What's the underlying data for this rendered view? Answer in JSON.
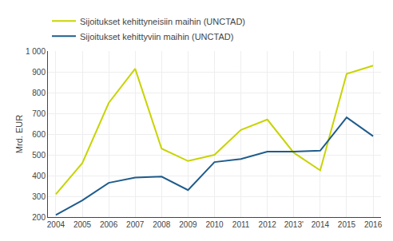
{
  "chart_data": {
    "type": "line",
    "categories": [
      "2004",
      "2005",
      "2006",
      "2007",
      "2008",
      "2009",
      "2010",
      "2011",
      "2012",
      "2013'",
      "2014",
      "2015",
      "2016"
    ],
    "series": [
      {
        "name": "Sijoitukset kehittyneisiin maihin (UNCTAD)",
        "color": "#c8d400",
        "values": [
          310,
          460,
          750,
          915,
          530,
          470,
          500,
          620,
          670,
          510,
          425,
          890,
          930
        ]
      },
      {
        "name": "Sijoitukset kehittyviin maihin (UNCTAD)",
        "color": "#1f5c8b",
        "values": [
          210,
          280,
          365,
          390,
          395,
          330,
          465,
          480,
          515,
          515,
          520,
          680,
          590
        ]
      }
    ],
    "ylabel": "Mrd. EUR",
    "ylim": [
      200,
      1000
    ],
    "yticks": [
      200,
      300,
      400,
      500,
      600,
      700,
      800,
      900,
      {
        "value": 1000,
        "label": "1 000"
      }
    ],
    "grid": true,
    "legend": "top"
  }
}
